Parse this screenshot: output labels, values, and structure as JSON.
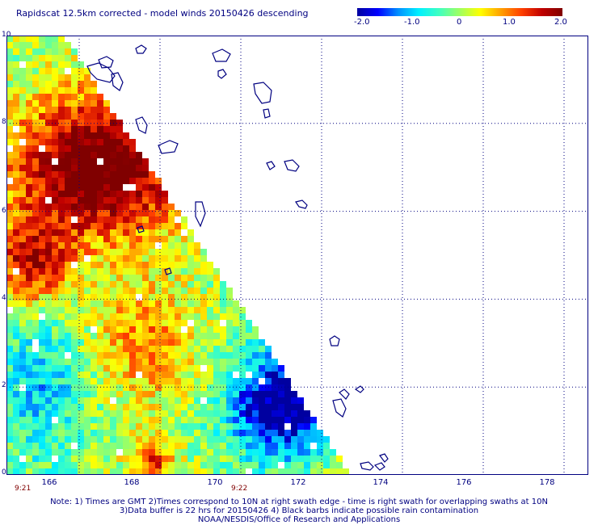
{
  "title": "Rapidscat 12.5km corrected - model winds 20150426 descending",
  "colorbar": {
    "ticks": [
      "-2.0",
      "-1.0",
      "0",
      "1.0",
      "2.0"
    ],
    "tick_values": [
      -2.0,
      -1.0,
      0,
      1.0,
      2.0
    ],
    "stops": [
      "#0000a0",
      "#0000ff",
      "#0090ff",
      "#00f0ff",
      "#40ffc0",
      "#a0ff60",
      "#ffff00",
      "#ffa000",
      "#ff4000",
      "#c00000",
      "#800000"
    ]
  },
  "axes": {
    "x_ticks": [
      "166",
      "168",
      "170",
      "172",
      "174",
      "176",
      "178"
    ],
    "x_values": [
      166,
      168,
      170,
      172,
      174,
      176,
      178
    ],
    "y_ticks": [
      "0",
      "2",
      "4",
      "6",
      "8",
      "10"
    ],
    "y_values": [
      0,
      2,
      4,
      6,
      8,
      10
    ],
    "xlim": [
      164.2,
      178.6
    ],
    "ylim": [
      0,
      10
    ]
  },
  "times": {
    "left": "9:21",
    "right": "9:22"
  },
  "footer": {
    "line1": "Note: 1) Times are GMT 2)Times correspond to 10N at right swath edge - time is right swath for overlapping swaths at 10N",
    "line2": "3)Data buffer is 22 hrs for 20150426 4) Black barbs indicate possible rain contamination",
    "line3": "NOAA/NESDIS/Office of Research and Applications"
  },
  "colors": {
    "text": "#000080",
    "grid": "#000080",
    "coast": "#000080",
    "time": "#800000"
  }
}
